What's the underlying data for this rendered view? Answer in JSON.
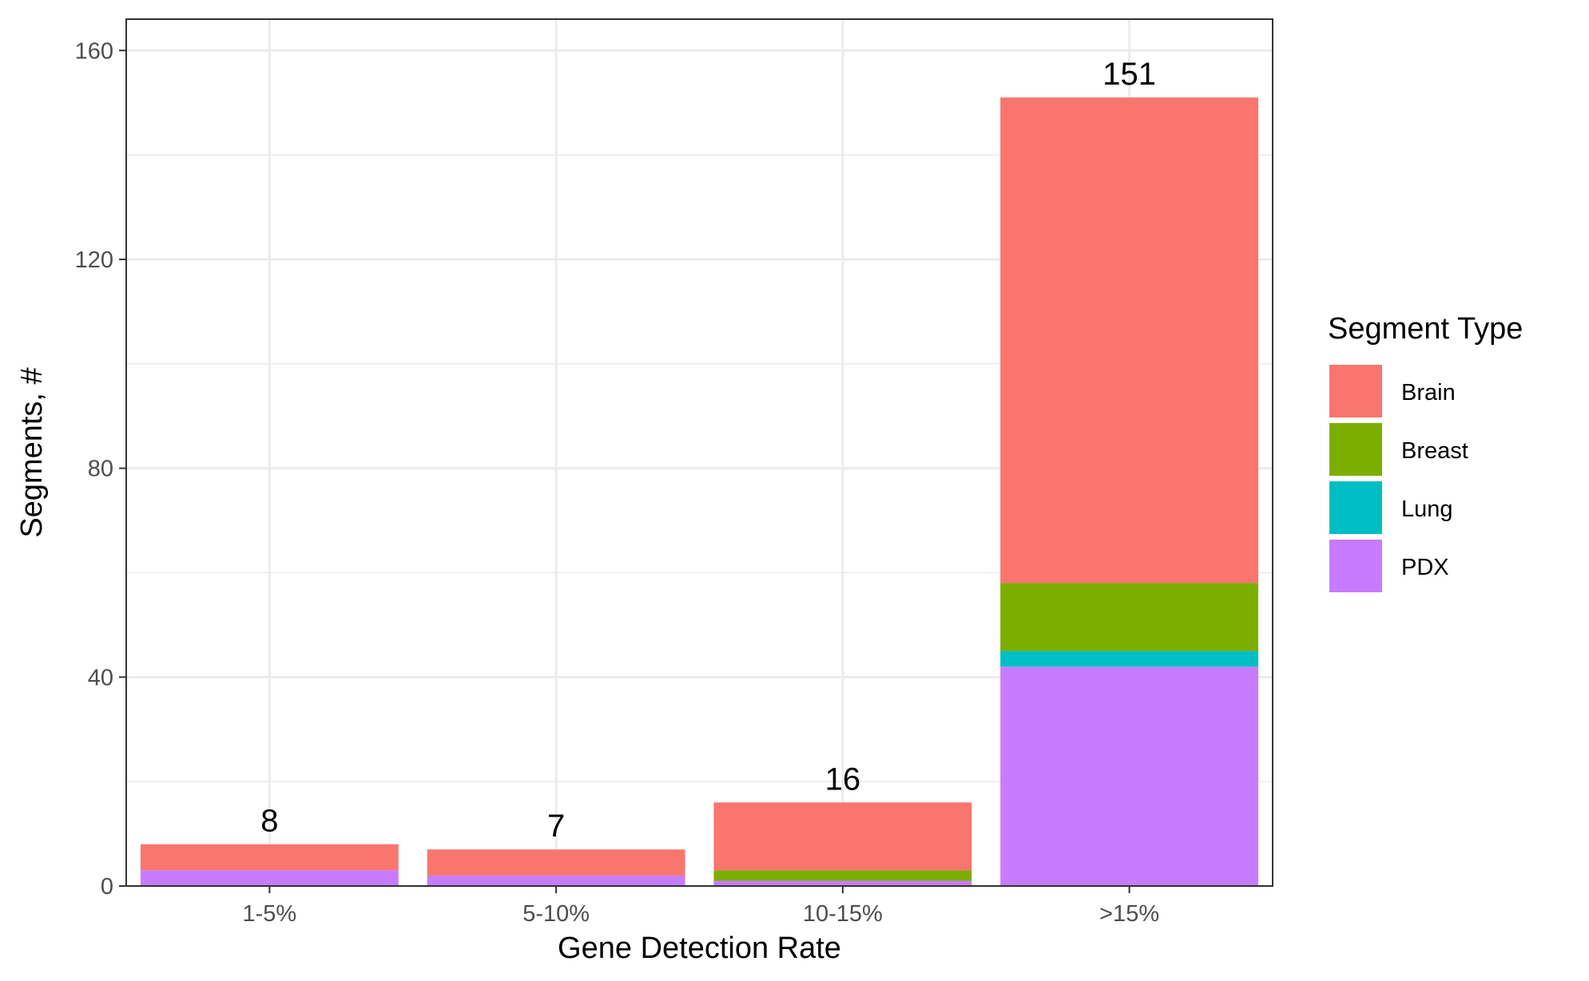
{
  "chart_data": {
    "type": "bar",
    "stacked": true,
    "categories": [
      "1-5%",
      "5-10%",
      "10-15%",
      ">15%"
    ],
    "series": [
      {
        "name": "Brain",
        "color": "#F8766D",
        "values": [
          5,
          5,
          13,
          93
        ]
      },
      {
        "name": "Breast",
        "color": "#7CAE00",
        "values": [
          0,
          0,
          2,
          13
        ]
      },
      {
        "name": "Lung",
        "color": "#00BFC4",
        "values": [
          0,
          0,
          0,
          3
        ]
      },
      {
        "name": "PDX",
        "color": "#C77CFF",
        "values": [
          3,
          2,
          1,
          42
        ]
      }
    ],
    "totals": [
      "8",
      "7",
      "16",
      "151"
    ],
    "xlabel": "Gene Detection Rate",
    "ylabel": "Segments, #",
    "ylim": [
      0,
      166
    ],
    "yticks": [
      "0",
      "40",
      "80",
      "120",
      "160"
    ],
    "ytick_values": [
      0,
      40,
      80,
      120,
      160
    ],
    "grid": true,
    "legend": {
      "title": "Segment Type",
      "position": "right"
    }
  }
}
